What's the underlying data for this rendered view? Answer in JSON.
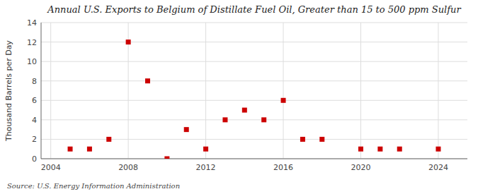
{
  "chart_data": {
    "type": "scatter",
    "title": "Annual U.S. Exports to Belgium of Distillate Fuel Oil, Greater than 15 to 500 ppm Sulfur",
    "y_label": "Thousand Barrels per Day",
    "source": "Source: U.S. Energy Information Administration",
    "x": [
      2005,
      2006,
      2007,
      2008,
      2009,
      2010,
      2011,
      2012,
      2013,
      2014,
      2015,
      2016,
      2017,
      2018,
      2020,
      2021,
      2022,
      2024
    ],
    "values": [
      1,
      1,
      2,
      12,
      8,
      0,
      3,
      1,
      4,
      5,
      4,
      6,
      2,
      2,
      1,
      1,
      1,
      1
    ],
    "color": "#cc0000",
    "marker": "square",
    "xlim": [
      2003.5,
      2025.5
    ],
    "xticks": [
      2004,
      2008,
      2012,
      2016,
      2020,
      2024
    ],
    "ylim": [
      0,
      14
    ],
    "yticks": [
      0,
      2,
      4,
      6,
      8,
      10,
      12,
      14
    ],
    "grid": true
  }
}
